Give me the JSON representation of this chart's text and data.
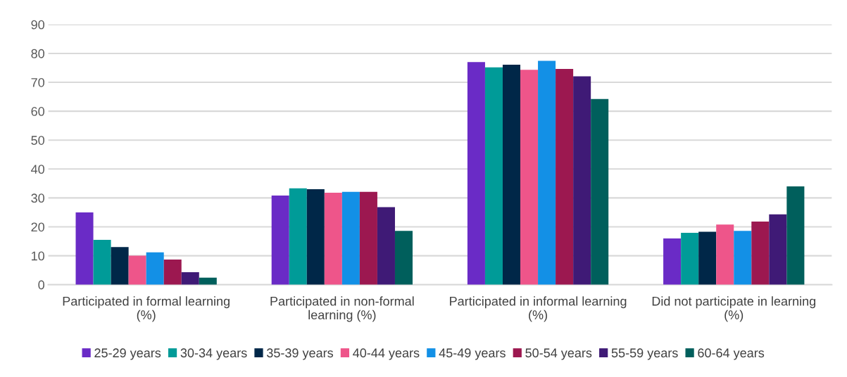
{
  "chart_data": {
    "type": "bar",
    "categories": [
      "Participated in formal learning (%)",
      "Participated in non-formal learning (%)",
      "Participated in informal learning (%)",
      "Did not participate in learning (%)"
    ],
    "series": [
      {
        "name": "25-29 years",
        "color": "#6a2bc6",
        "values": [
          25,
          30.8,
          77,
          16
        ]
      },
      {
        "name": "30-34 years",
        "color": "#009b98",
        "values": [
          15.5,
          33.3,
          75.2,
          17.9
        ]
      },
      {
        "name": "35-39 years",
        "color": "#002748",
        "values": [
          13,
          33,
          76.1,
          18.3
        ]
      },
      {
        "name": "40-44 years",
        "color": "#ee558a",
        "values": [
          10,
          31.8,
          74.3,
          20.8
        ]
      },
      {
        "name": "45-49 years",
        "color": "#1390e6",
        "values": [
          11.2,
          32.1,
          77.4,
          18.6
        ]
      },
      {
        "name": "50-54 years",
        "color": "#9c1850",
        "values": [
          8.7,
          32.1,
          74.6,
          21.8
        ]
      },
      {
        "name": "55-59 years",
        "color": "#3f1a76",
        "values": [
          4.3,
          26.8,
          72.1,
          24.3
        ]
      },
      {
        "name": "60-64 years",
        "color": "#005f5c",
        "values": [
          2.4,
          18.6,
          64.2,
          34
        ]
      }
    ],
    "ylim": [
      0,
      90
    ],
    "yticks": [
      0,
      10,
      20,
      30,
      40,
      50,
      60,
      70,
      80,
      90
    ],
    "grid": "y",
    "legend": "bottom"
  }
}
